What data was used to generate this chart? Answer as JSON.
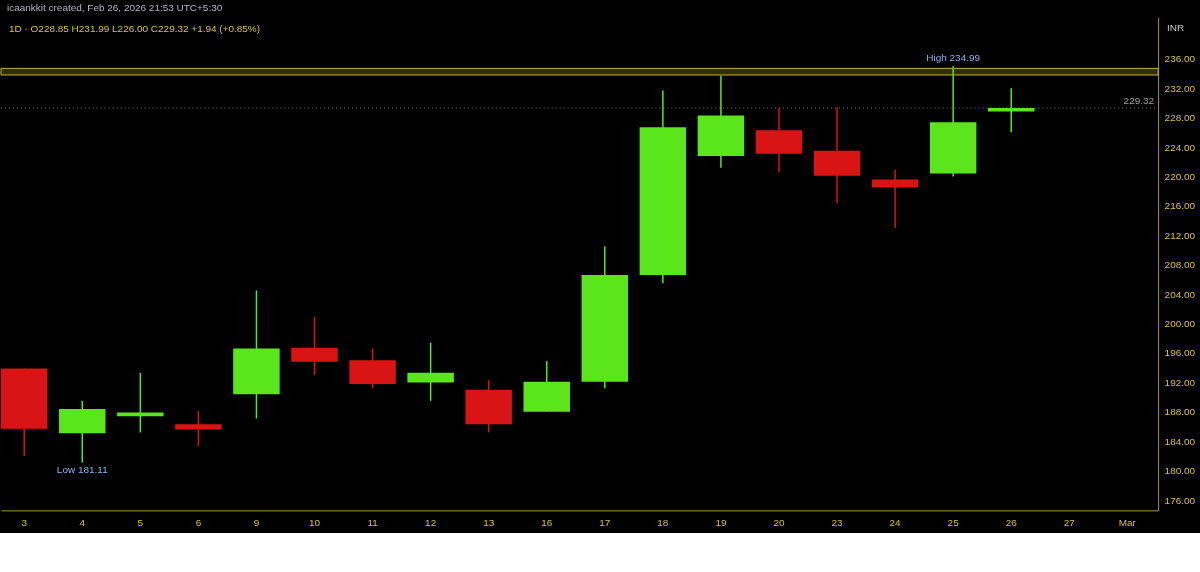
{
  "chart_data": {
    "type": "candlestick",
    "title": "icaankkit created, Feb 26, 2026 21:53 UTC+5:30",
    "subtitle": "1D · O228.85 H231.99 L226.00 C229.32 +1.94 (+0.85%)",
    "ylabel": "INR",
    "categories": [
      "3",
      "4",
      "5",
      "6",
      "9",
      "10",
      "11",
      "12",
      "13",
      "16",
      "17",
      "18",
      "19",
      "20",
      "23",
      "24",
      "25",
      "26",
      "27",
      "Mar"
    ],
    "ohlc": [
      [
        193.9,
        193.9,
        182.0,
        185.7
      ],
      [
        185.1,
        189.5,
        181.11,
        188.4
      ],
      [
        187.4,
        193.3,
        185.2,
        187.9
      ],
      [
        186.3,
        188.1,
        183.3,
        185.6
      ],
      [
        190.4,
        204.5,
        187.1,
        196.6
      ],
      [
        196.7,
        200.9,
        193.0,
        194.8
      ],
      [
        195.0,
        196.6,
        191.2,
        191.8
      ],
      [
        192.0,
        197.4,
        189.5,
        193.3
      ],
      [
        191.0,
        192.3,
        185.2,
        186.3
      ],
      [
        188.0,
        194.9,
        188.0,
        192.1
      ],
      [
        192.1,
        210.5,
        191.2,
        206.6
      ],
      [
        206.6,
        231.7,
        205.5,
        226.7
      ],
      [
        222.8,
        233.7,
        221.2,
        228.3
      ],
      [
        226.3,
        229.3,
        220.6,
        223.1
      ],
      [
        223.5,
        229.4,
        216.4,
        220.1
      ],
      [
        219.6,
        220.9,
        213.0,
        218.5
      ],
      [
        220.4,
        234.99,
        220.0,
        227.38
      ],
      [
        228.85,
        231.99,
        226.0,
        229.32
      ],
      null,
      null
    ],
    "colors": [
      "#d81414",
      "#5ae61b",
      "#5ae61b",
      "#d81414",
      "#5ae61b",
      "#d81414",
      "#d81414",
      "#5ae61b",
      "#d81414",
      "#5ae61b",
      "#5ae61b",
      "#5ae61b",
      "#5ae61b",
      "#d81414",
      "#d81414",
      "#d81414",
      "#5ae61b",
      "#5ae61b",
      null,
      null
    ],
    "ylim": [
      174.6,
      241.6
    ],
    "yticks": [
      {
        "value": 176,
        "label": "176.00"
      },
      {
        "value": 180,
        "label": "180.00"
      },
      {
        "value": 184,
        "label": "184.00"
      },
      {
        "value": 188,
        "label": "188.00"
      },
      {
        "value": 192,
        "label": "192.00"
      },
      {
        "value": 196,
        "label": "196.00"
      },
      {
        "value": 200,
        "label": "200.00"
      },
      {
        "value": 204,
        "label": "204.00"
      },
      {
        "value": 208,
        "label": "208.00"
      },
      {
        "value": 212,
        "label": "212.00"
      },
      {
        "value": 216,
        "label": "216.00"
      },
      {
        "value": 220,
        "label": "220.00"
      },
      {
        "value": 224,
        "label": "224.00"
      },
      {
        "value": 228,
        "label": "228.00"
      },
      {
        "value": 232,
        "label": "232.00"
      },
      {
        "value": 236,
        "label": "236.00"
      }
    ],
    "ref_lines": [
      {
        "axis": "y",
        "value": 229.32,
        "label": "229.32",
        "color": "#7a7a7a",
        "line_style": "dotted"
      }
    ],
    "bands": [
      {
        "axis": "y",
        "from": 233.8,
        "to": 234.7,
        "color": "#c8b432"
      }
    ],
    "annotations": [
      {
        "text": "High 234.99",
        "x": "25",
        "y": 234.99
      },
      {
        "text": "Low 181.11",
        "x": "4",
        "y": 181.11
      }
    ]
  }
}
